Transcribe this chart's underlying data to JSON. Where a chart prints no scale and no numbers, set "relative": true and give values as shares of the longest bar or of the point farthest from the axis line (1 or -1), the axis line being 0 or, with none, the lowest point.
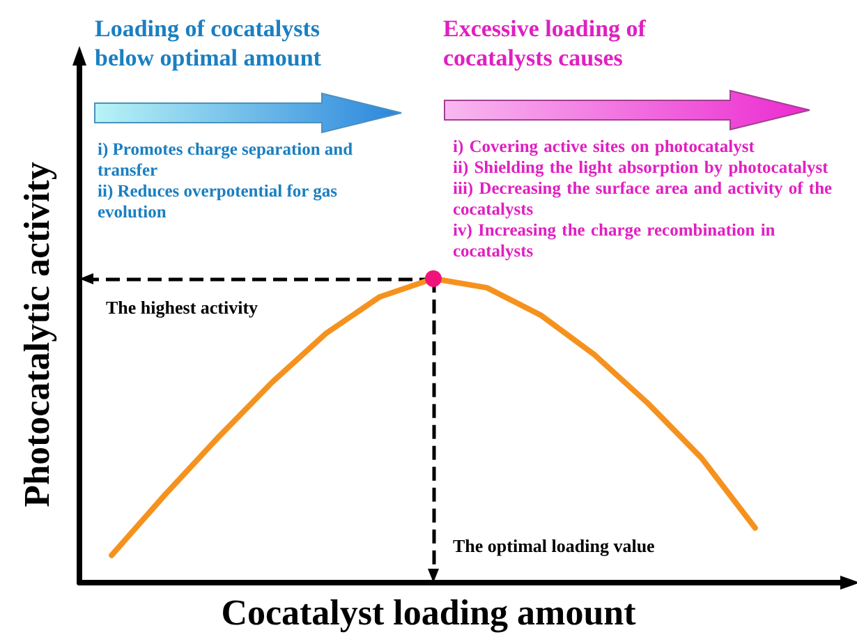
{
  "chart_data": {
    "type": "line",
    "relative": true,
    "xlabel": "Cocatalyst loading amount",
    "ylabel": "Photocatalytic activity",
    "categories": [
      null,
      null,
      null,
      null,
      null,
      null,
      null,
      null,
      null,
      null,
      null,
      null,
      null
    ],
    "series": [
      {
        "color": "#f5921e",
        "values": [
          0.09,
          0.29,
          0.48,
          0.66,
          0.82,
          0.94,
          1,
          0.97,
          0.88,
          0.75,
          0.59,
          0.41,
          0.18
        ]
      }
    ],
    "ref_lines": [
      {
        "axis": "y",
        "value": 1,
        "label": "The highest activity",
        "color": "#000000",
        "line_style": "dashed"
      }
    ],
    "annotations": [
      "Loading of cocatalysts below optimal amount",
      "i) Promotes charge separation and transfer",
      "ii) Reduces overpotential for gas evolution",
      "Excessive loading of cocatalysts causes",
      "i) Covering active sites on photocatalyst",
      "ii) Shielding the light absorption by photocatalyst",
      "iii) Decreasing the surface area and activity of the cocatalysts",
      "iv) Increasing the charge recombination in cocatalysts",
      "The optimal loading value"
    ],
    "grid": false
  }
}
